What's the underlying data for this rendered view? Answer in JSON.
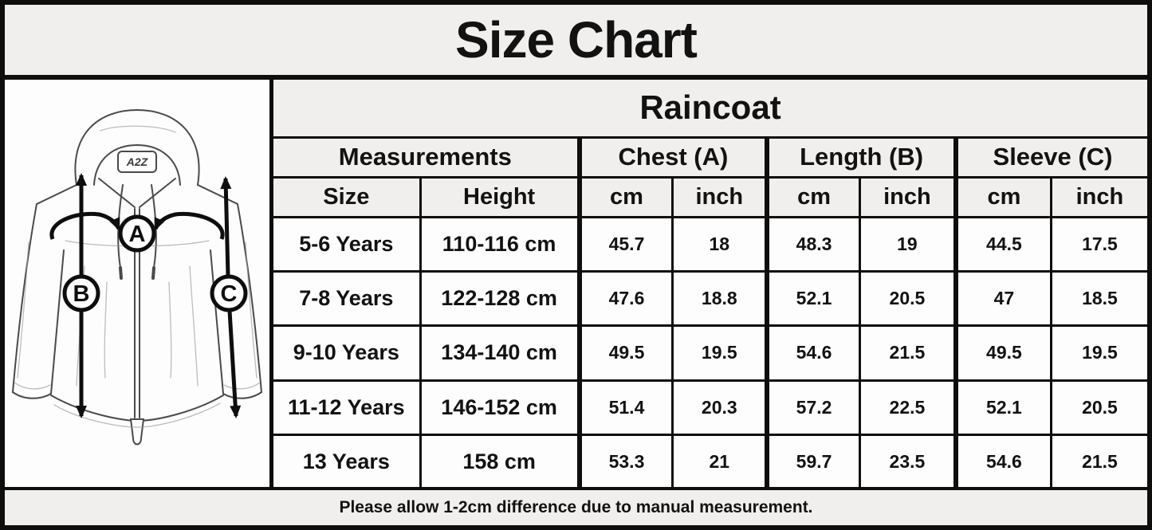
{
  "title": "Size Chart",
  "product": "Raincoat",
  "chart_data": {
    "type": "table",
    "title": "Size Chart",
    "subtitle": "Raincoat",
    "column_groups": [
      "Measurements",
      "Chest (A)",
      "Length (B)",
      "Sleeve (C)"
    ],
    "sub_headers": [
      "Size",
      "Height",
      "cm",
      "inch",
      "cm",
      "inch",
      "cm",
      "inch"
    ],
    "columns": [
      "Size",
      "Height",
      "Chest cm",
      "Chest inch",
      "Length cm",
      "Length inch",
      "Sleeve cm",
      "Sleeve inch"
    ],
    "rows": [
      [
        "5-6 Years",
        "110-116 cm",
        "45.7",
        "18",
        "48.3",
        "19",
        "44.5",
        "17.5"
      ],
      [
        "7-8 Years",
        "122-128 cm",
        "47.6",
        "18.8",
        "52.1",
        "20.5",
        "47",
        "18.5"
      ],
      [
        "9-10 Years",
        "134-140 cm",
        "49.5",
        "19.5",
        "54.6",
        "21.5",
        "49.5",
        "19.5"
      ],
      [
        "11-12 Years",
        "146-152 cm",
        "51.4",
        "20.3",
        "57.2",
        "22.5",
        "52.1",
        "20.5"
      ],
      [
        "13 Years",
        "158 cm",
        "53.3",
        "21",
        "59.7",
        "23.5",
        "54.6",
        "21.5"
      ]
    ],
    "note": "Please allow 1-2cm difference due to manual measurement."
  },
  "footer_note": "Please allow 1-2cm difference due to manual measurement.",
  "diagram": {
    "brand_label": "A2Z",
    "markers": [
      "A",
      "B",
      "C"
    ]
  },
  "colors": {
    "background_gray": "#f0efed",
    "cell_white": "#fdfdfd",
    "border_black": "#0e0e0e",
    "text": "#121212"
  }
}
